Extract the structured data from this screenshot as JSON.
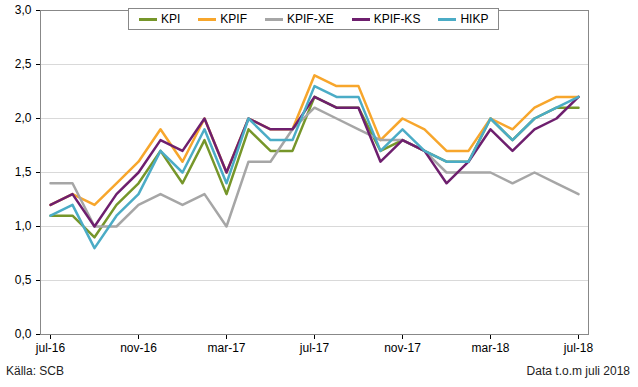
{
  "chart_data": {
    "type": "line",
    "source": "Källa: SCB",
    "note": "Data t.o.m juli 2018",
    "categories": [
      "jul-16",
      null,
      null,
      null,
      "nov-16",
      null,
      null,
      null,
      "mar-17",
      null,
      null,
      null,
      "jul-17",
      null,
      null,
      null,
      "nov-17",
      null,
      null,
      null,
      "mar-18",
      null,
      null,
      null,
      "jul-18"
    ],
    "series": [
      {
        "name": "KPI",
        "color": "#76962a",
        "values": [
          1.1,
          1.1,
          0.9,
          1.2,
          1.4,
          1.7,
          1.4,
          1.8,
          1.3,
          1.9,
          1.7,
          1.7,
          2.2,
          2.1,
          2.1,
          1.7,
          1.8,
          1.7,
          1.6,
          1.6,
          2.0,
          1.8,
          2.0,
          2.1,
          2.1
        ]
      },
      {
        "name": "KPIF",
        "color": "#f7a62c",
        "values": [
          1.2,
          1.3,
          1.2,
          1.4,
          1.6,
          1.9,
          1.6,
          2.0,
          1.5,
          2.0,
          1.9,
          1.9,
          2.4,
          2.3,
          2.3,
          1.8,
          2.0,
          1.9,
          1.7,
          1.7,
          2.0,
          1.9,
          2.1,
          2.2,
          2.2
        ]
      },
      {
        "name": "KPIF-XE",
        "color": "#a6a6a6",
        "values": [
          1.4,
          1.4,
          1.0,
          1.0,
          1.2,
          1.3,
          1.2,
          1.3,
          1.0,
          1.6,
          1.6,
          1.9,
          2.1,
          2.0,
          1.9,
          1.8,
          1.8,
          1.7,
          1.5,
          1.5,
          1.5,
          1.4,
          1.5,
          1.4,
          1.3
        ]
      },
      {
        "name": "KPIF-KS",
        "color": "#6e1f6e",
        "values": [
          1.2,
          1.3,
          1.0,
          1.3,
          1.5,
          1.8,
          1.7,
          2.0,
          1.5,
          2.0,
          1.9,
          1.9,
          2.2,
          2.1,
          2.1,
          1.6,
          1.8,
          1.7,
          1.4,
          1.6,
          1.9,
          1.7,
          1.9,
          2.0,
          2.2
        ]
      },
      {
        "name": "HIKP",
        "color": "#4bacc6",
        "values": [
          1.1,
          1.2,
          0.8,
          1.1,
          1.3,
          1.7,
          1.5,
          1.9,
          1.4,
          2.0,
          1.8,
          1.8,
          2.3,
          2.2,
          2.2,
          1.7,
          1.9,
          1.7,
          1.6,
          1.6,
          2.0,
          1.8,
          2.0,
          2.1,
          2.2
        ]
      }
    ],
    "ylim": [
      0,
      3
    ],
    "yticks": [
      {
        "value": 0,
        "label": "0,0"
      },
      {
        "value": 0.5,
        "label": "0,5"
      },
      {
        "value": 1,
        "label": "1,0"
      },
      {
        "value": 1.5,
        "label": "1,5"
      },
      {
        "value": 2,
        "label": "2,0"
      },
      {
        "value": 2.5,
        "label": "2,5"
      },
      {
        "value": 3,
        "label": "3,0"
      }
    ],
    "grid": true,
    "legend": "top"
  }
}
